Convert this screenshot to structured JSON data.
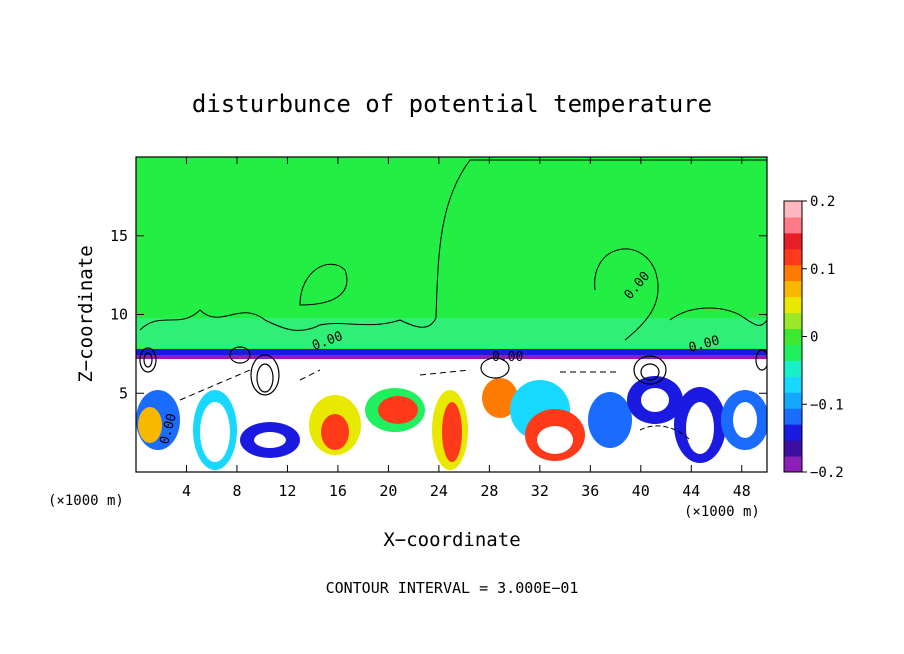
{
  "chart_data": {
    "type": "heatmap",
    "title": "disturbunce of potential temperature",
    "xlabel": "X−coordinate",
    "ylabel": "Z−coordinate",
    "x_unit_left": "(×1000 m)",
    "x_unit_right": "(×1000 m)",
    "xlim": [
      0,
      50
    ],
    "ylim": [
      0,
      20
    ],
    "x_ticks": [
      4,
      8,
      12,
      16,
      20,
      24,
      28,
      32,
      36,
      40,
      44,
      48
    ],
    "y_ticks": [
      5,
      10,
      15
    ],
    "colorbar": {
      "range": [
        -0.2,
        0.2
      ],
      "tick_values": [
        0.2,
        0.1,
        0,
        -0.1,
        -0.2
      ],
      "tick_labels": [
        "0.2",
        "0.1",
        "0",
        "−0.1",
        "−0.2"
      ],
      "colors": [
        "#8b1fb6",
        "#3d0fa0",
        "#1a1ae0",
        "#1a6cff",
        "#12a8ff",
        "#18d8ff",
        "#18f0c8",
        "#20f060",
        "#3ce830",
        "#9ae828",
        "#e8e800",
        "#f8b800",
        "#ff7a00",
        "#ff3a1a",
        "#e81e28",
        "#ff7a88",
        "#ffb8c0"
      ]
    },
    "contour_label": "0.00",
    "annotation": "CONTOUR INTERVAL = 3.000E−01"
  }
}
